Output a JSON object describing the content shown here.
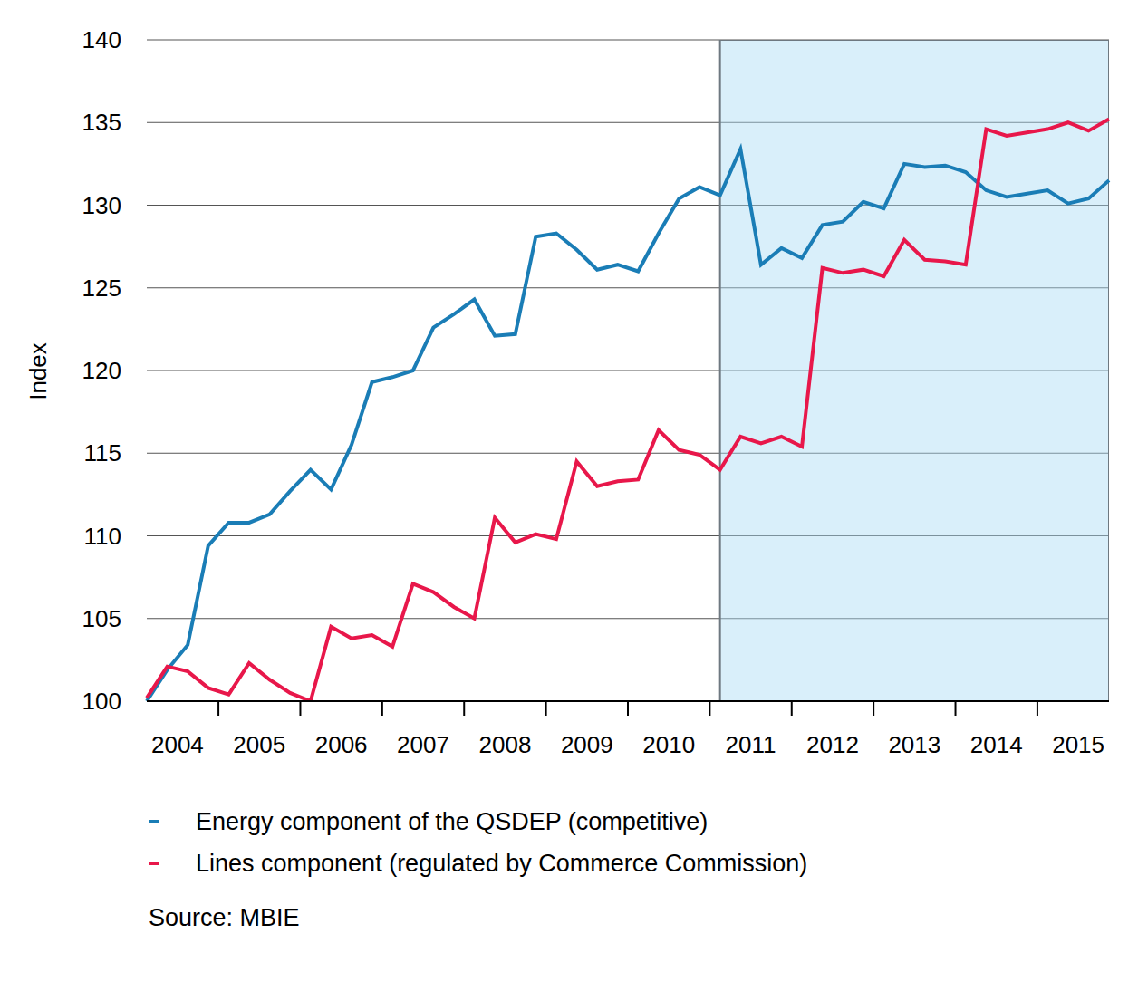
{
  "chart_data": {
    "type": "line",
    "y_label": "Index",
    "source": "Source: MBIE",
    "categories": [
      null,
      "2004",
      null,
      null,
      null,
      "2005",
      null,
      null,
      null,
      "2006",
      null,
      null,
      null,
      "2007",
      null,
      null,
      null,
      "2008",
      null,
      null,
      null,
      "2009",
      null,
      null,
      null,
      "2010",
      null,
      null,
      null,
      "2011",
      null,
      null,
      null,
      "2012",
      null,
      null,
      null,
      "2013",
      null,
      null,
      null,
      "2014",
      null,
      null,
      null,
      "2015",
      null,
      null
    ],
    "series": [
      {
        "name": "Energy component of the QSDEP (competitive)",
        "color": "#1a7db6",
        "values": [
          100.0,
          101.9,
          103.4,
          109.4,
          110.8,
          110.8,
          111.3,
          112.7,
          114.0,
          112.8,
          115.5,
          119.3,
          119.6,
          120.0,
          122.6,
          123.4,
          124.3,
          122.1,
          122.2,
          128.1,
          128.3,
          127.3,
          126.1,
          126.4,
          126.0,
          128.3,
          130.4,
          131.1,
          130.6,
          133.4,
          126.4,
          127.4,
          126.8,
          128.8,
          129.0,
          130.2,
          129.8,
          132.5,
          132.3,
          132.4,
          132.0,
          130.9,
          130.5,
          130.7,
          130.9,
          130.1,
          130.4,
          131.5
        ]
      },
      {
        "name": "Lines component (regulated by Commerce Commission)",
        "color": "#e8174a",
        "values": [
          100.2,
          102.1,
          101.8,
          100.8,
          100.4,
          102.3,
          101.3,
          100.5,
          100.0,
          104.5,
          103.8,
          104.0,
          103.3,
          107.1,
          106.6,
          105.7,
          105.0,
          111.1,
          109.6,
          110.1,
          109.8,
          114.5,
          113.0,
          113.3,
          113.4,
          116.4,
          115.2,
          114.9,
          114.0,
          116.0,
          115.6,
          116.0,
          115.4,
          126.2,
          125.9,
          126.1,
          125.7,
          127.9,
          126.7,
          126.6,
          126.4,
          134.6,
          134.2,
          134.4,
          134.6,
          135.0,
          134.5,
          135.2
        ]
      }
    ],
    "ylim": [
      100,
      140
    ],
    "yticks": [
      100,
      105,
      110,
      115,
      120,
      125,
      130,
      135,
      140
    ],
    "grid": true,
    "legend": "bottom",
    "highlight": {
      "from_index": 28,
      "to_index": 47
    }
  }
}
